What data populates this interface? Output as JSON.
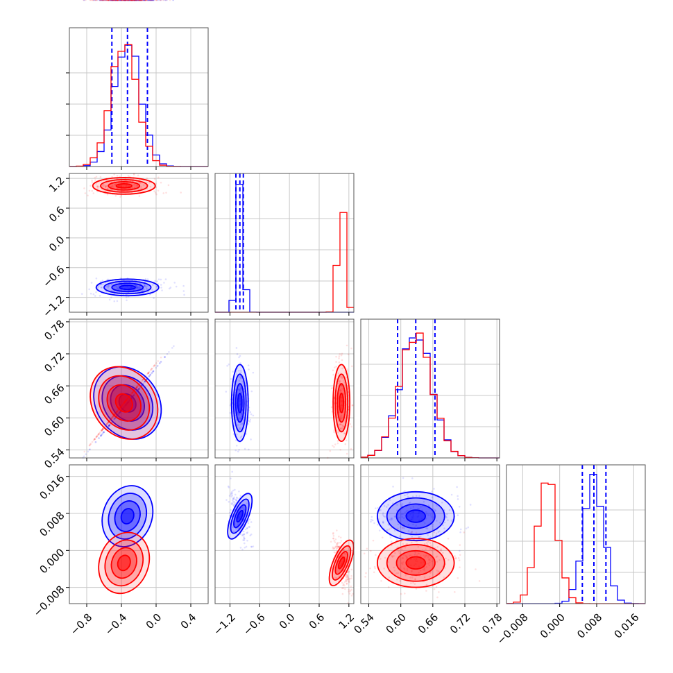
{
  "chart_data": {
    "type": "corner",
    "colors": {
      "series_a": "#0000ff",
      "series_b": "#ff0000",
      "grid": "#c8c8c8",
      "frame": "#555555"
    },
    "parameters": [
      {
        "ticks": [
          -0.8,
          -0.4,
          0.0,
          0.4
        ],
        "tick_labels": [
          "−0.8",
          "−0.4",
          "0.0",
          "0.4"
        ],
        "range": [
          -1.0,
          0.6
        ]
      },
      {
        "ticks": [
          -1.2,
          -0.6,
          0.0,
          0.6,
          1.2
        ],
        "tick_labels": [
          "−1.2",
          "−0.6",
          "0.0",
          "0.6",
          "1.2"
        ],
        "range": [
          -1.5,
          1.3
        ]
      },
      {
        "ticks": [
          0.54,
          0.6,
          0.66,
          0.72,
          0.78
        ],
        "tick_labels": [
          "0.54",
          "0.60",
          "0.66",
          "0.72",
          "0.78"
        ],
        "range": [
          0.525,
          0.785
        ]
      },
      {
        "ticks": [
          -0.008,
          0.0,
          0.008,
          0.016
        ],
        "tick_labels": [
          "−0.008",
          "0.000",
          "0.008",
          "0.016"
        ],
        "range": [
          -0.0115,
          0.0185
        ]
      }
    ],
    "series": [
      {
        "color": "series_a",
        "means": [
          -0.33,
          -1.0,
          0.628,
          0.0074
        ],
        "stds": [
          0.15,
          0.07,
          0.03,
          0.0022
        ],
        "quantiles": [
          [
            -0.51,
            -0.33,
            -0.1
          ],
          [
            -1.08,
            -1.0,
            -0.93
          ],
          [
            0.594,
            0.628,
            0.664
          ],
          [
            0.0049,
            0.0074,
            0.01
          ]
        ],
        "correlations": [
          [
            0,
            1,
            2,
            3
          ],
          [
            0.0,
            -0.65,
            0.3
          ],
          [
            0.0,
            0.0,
            0.4
          ],
          [
            0.0
          ]
        ]
      },
      {
        "color": "series_b",
        "means": [
          -0.37,
          1.05,
          0.628,
          -0.0027
        ],
        "stds": [
          0.15,
          0.07,
          0.03,
          0.0022
        ],
        "quantiles": [],
        "correlations": [
          [
            0,
            1,
            2,
            3
          ],
          [
            0.0,
            -0.65,
            -0.3
          ],
          [
            0.0,
            0.0,
            -0.35
          ],
          [
            0.0
          ]
        ]
      }
    ],
    "grid": true
  }
}
